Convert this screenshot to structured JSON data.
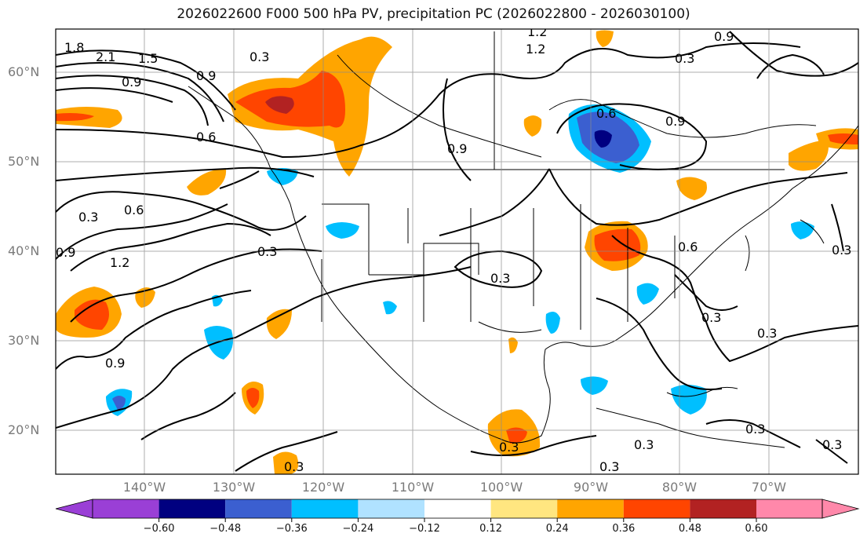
{
  "title": "2026022600 F000 500 hPa PV, precipitation PC (2026022800 - 2026030100)",
  "lat_labels": [
    "60°N",
    "50°N",
    "40°N",
    "30°N",
    "20°N"
  ],
  "lon_labels": [
    "140°W",
    "130°W",
    "120°W",
    "110°W",
    "100°W",
    "90°W",
    "80°W",
    "70°W"
  ],
  "colorbar": {
    "ticks": [
      "−0.60",
      "−0.48",
      "−0.36",
      "−0.24",
      "−0.12",
      "0.12",
      "0.24",
      "0.36",
      "0.48",
      "0.60"
    ],
    "colors": [
      "#9a3fd6",
      "#000080",
      "#3b5fd0",
      "#00bfff",
      "#b0e2ff",
      "#ffffff",
      "#ffe680",
      "#ffa500",
      "#ff4500",
      "#b22222",
      "#ff88aa"
    ]
  },
  "contour_labels": [
    "1.8",
    "2.1",
    "1.5",
    "0.9",
    "0.3",
    "1.2",
    "0.6",
    "0.9",
    "0.3",
    "0.6",
    "0.3",
    "1.2",
    "0.9",
    "0.9",
    "0.6",
    "0.3",
    "0.3",
    "0.6",
    "0.9",
    "0.3",
    "0.3",
    "0.3",
    "0.3",
    "0.3",
    "0.3",
    "0.3",
    "0.3",
    "0.9",
    "0.3",
    "1.2",
    "0.9"
  ]
}
